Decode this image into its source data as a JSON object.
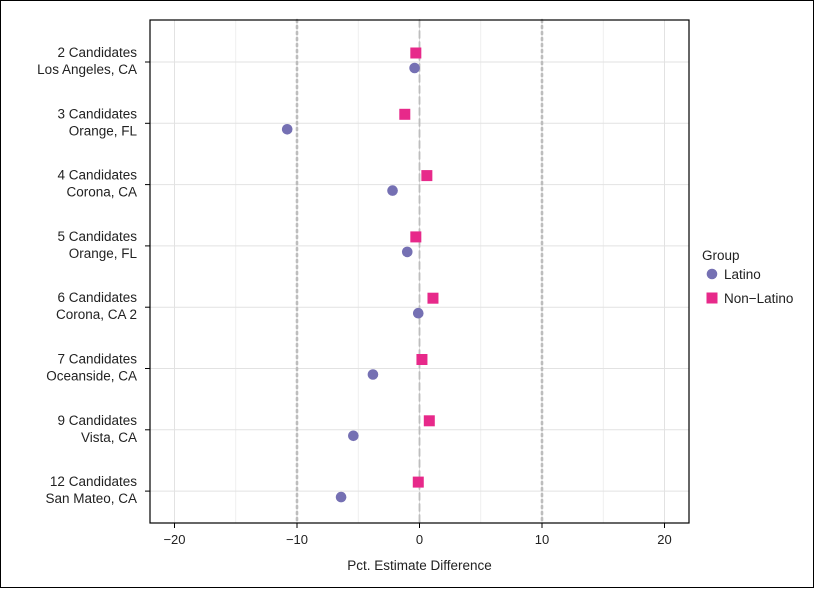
{
  "chart_data": {
    "type": "scatter",
    "title": "",
    "xlabel": "Pct. Estimate Difference",
    "ylabel": "",
    "xlim": [
      -22,
      22
    ],
    "x_ticks": [
      -20,
      -10,
      0,
      10,
      20
    ],
    "x_tick_labels": [
      "−20",
      "−10",
      "0",
      "10",
      "20"
    ],
    "reference_lines": [
      {
        "x": -10,
        "style": "dotted"
      },
      {
        "x": 0,
        "style": "dashed"
      },
      {
        "x": 10,
        "style": "dotted"
      }
    ],
    "grid": true,
    "legend_position": "right",
    "categories": [
      {
        "line1": "2 Candidates",
        "line2": "Los Angeles, CA"
      },
      {
        "line1": "3 Candidates",
        "line2": "Orange, FL"
      },
      {
        "line1": "4 Candidates",
        "line2": "Corona, CA"
      },
      {
        "line1": "5 Candidates",
        "line2": "Orange, FL"
      },
      {
        "line1": "6 Candidates",
        "line2": "Corona, CA 2"
      },
      {
        "line1": "7 Candidates",
        "line2": "Oceanside, CA"
      },
      {
        "line1": "9 Candidates",
        "line2": "Vista, CA"
      },
      {
        "line1": "12 Candidates",
        "line2": "San Mateo, CA"
      }
    ],
    "legend_title": "Group",
    "series": [
      {
        "name": "Latino",
        "marker": "circle",
        "color": "#7570b3",
        "values": [
          -0.4,
          -10.8,
          -2.2,
          -1.0,
          -0.1,
          -3.8,
          -5.4,
          -6.4
        ]
      },
      {
        "name": "Non−Latino",
        "marker": "square",
        "color": "#e7298a",
        "values": [
          -0.3,
          -1.2,
          0.6,
          -0.3,
          1.1,
          0.2,
          0.8,
          -0.1
        ]
      }
    ]
  }
}
